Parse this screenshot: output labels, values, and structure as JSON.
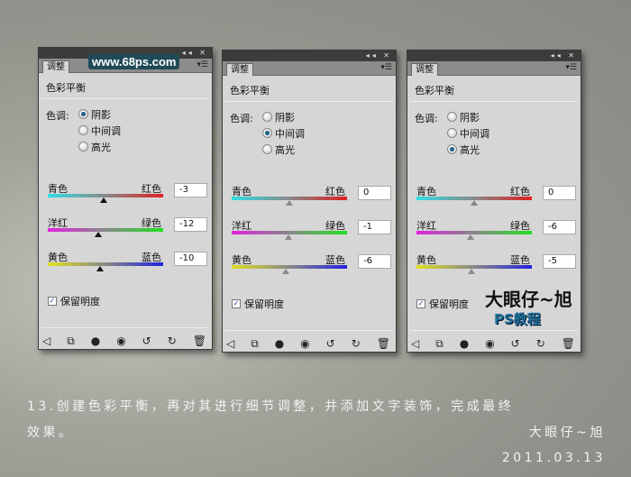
{
  "panel_common": {
    "tab": "调整",
    "title": "色彩平衡",
    "tone_label": "色调:",
    "tones": [
      "阴影",
      "中间调",
      "高光"
    ],
    "preserve": "保留明度",
    "menu_icon": "panel-menu-icon",
    "titlebar_icons": "◂◂ ✕"
  },
  "slider_labels": [
    [
      "青色",
      "红色"
    ],
    [
      "洋红",
      "绿色"
    ],
    [
      "黄色",
      "蓝色"
    ]
  ],
  "panels": [
    {
      "tone": 0,
      "values": [
        -3,
        -12,
        -10
      ]
    },
    {
      "tone": 1,
      "values": [
        0,
        -1,
        -6
      ]
    },
    {
      "tone": 2,
      "values": [
        0,
        -6,
        -5
      ]
    }
  ],
  "bottom_icons": [
    "◁",
    "⧉",
    "●",
    "◉",
    "↺",
    "↻",
    "🗑"
  ],
  "watermark": "www.68ps.com",
  "logo": {
    "line1": "大眼仔~旭",
    "line2": "PS教程"
  },
  "caption": {
    "line1": "13.创建色彩平衡，再对其进行细节调整，并添加文字装饰，完成最终",
    "line2": "效果。",
    "author": "大眼仔~旭",
    "date": "2011.03.13"
  }
}
